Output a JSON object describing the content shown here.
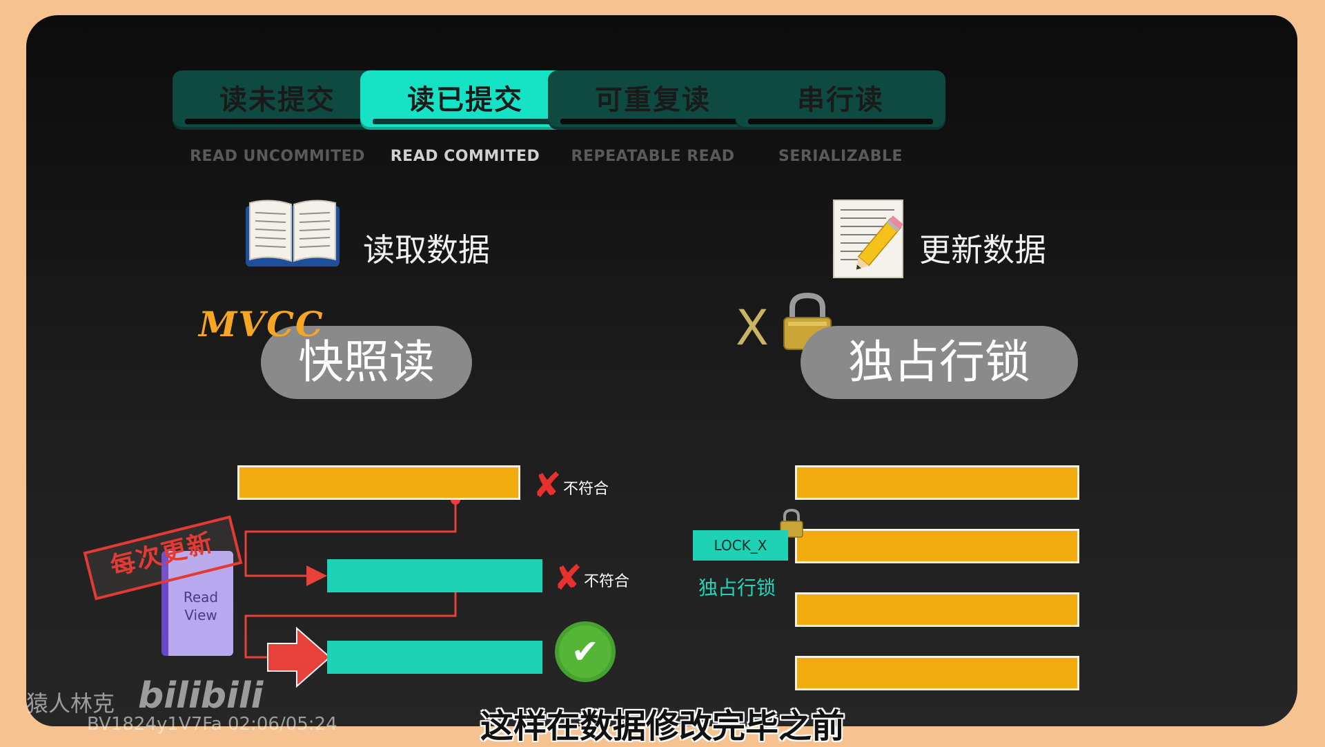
{
  "tabs": [
    {
      "label": "读未提交",
      "sub": "READ UNCOMMITED",
      "active": false
    },
    {
      "label": "读已提交",
      "sub": "READ COMMITED",
      "active": true
    },
    {
      "label": "可重复读",
      "sub": "REPEATABLE READ",
      "active": false
    },
    {
      "label": "串行读",
      "sub": "SERIALIZABLE",
      "active": false
    }
  ],
  "left": {
    "heading": "读取数据",
    "icon": "open-book-icon",
    "tag": "MVCC",
    "pill": "快照读",
    "stamp": "每次更新",
    "read_view": [
      "Read",
      "View"
    ],
    "verdict_fail": "不符合",
    "fail_icon": "red-x-icon",
    "pass_icon": "green-check-icon"
  },
  "right": {
    "heading": "更新数据",
    "icon": "memo-pencil-icon",
    "x_label": "X",
    "lock_icon": "padlock-icon",
    "pill": "独占行锁",
    "lock_tag": "LOCK_X",
    "lock_label": "独占行锁"
  },
  "subtitle": "这样在数据修改完毕之前",
  "watermark": {
    "author": "猿人林克",
    "brand": "bilibili",
    "meta": "BV1824y1V7Fa 02:06/05:24"
  },
  "colors": {
    "teal": "#1fd2b6",
    "orange": "#f2ac0f",
    "red": "#e8312c",
    "green": "#54b536",
    "purple": "#b7a8ef"
  }
}
